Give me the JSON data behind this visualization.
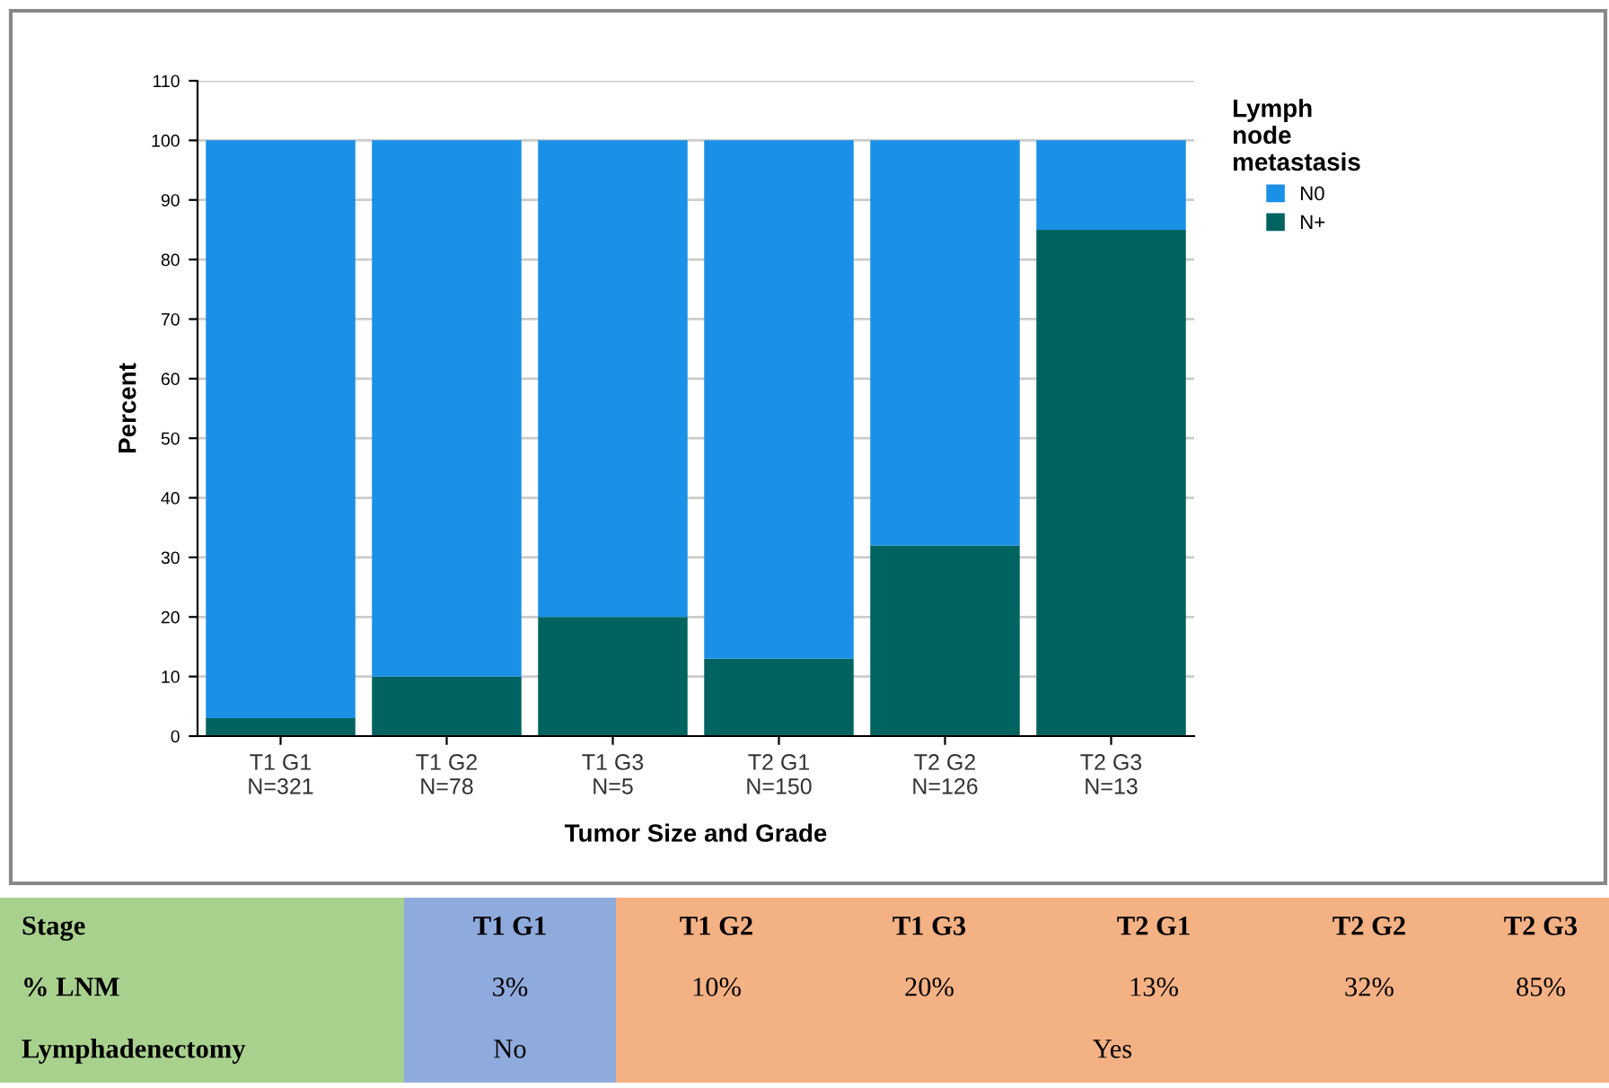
{
  "chart_data": {
    "type": "bar",
    "stacked": true,
    "xlabel": "Tumor Size and Grade",
    "ylabel": "Percent",
    "legend_title": "Lymph\nnode\nmetastasis",
    "legend": "top right",
    "categories": [
      "T1 G1\nN=321",
      "T1 G2\nN=78",
      "T1 G3\nN=5",
      "T2 G1\nN=150",
      "T2 G2\nN=126",
      "T2 G3\nN=13"
    ],
    "series": [
      {
        "name": "N+",
        "color": "#006360",
        "values": [
          3,
          10,
          20,
          13,
          32,
          85
        ]
      },
      {
        "name": "N0",
        "color": "#1a90e6",
        "values": [
          97,
          90,
          80,
          87,
          68,
          15
        ]
      }
    ],
    "ylim": [
      0,
      110
    ],
    "yticks": [
      0,
      10,
      20,
      30,
      40,
      50,
      60,
      70,
      80,
      90,
      100,
      110
    ],
    "grid": "y",
    "annotations": [
      "Stage",
      "T1 G1",
      "T1 G2",
      "T1 G3",
      "T2 G1",
      "T2 G2",
      "T2 G3",
      "% LNM",
      "Lymphadenectomy",
      "No",
      "Yes",
      "3%",
      "10%",
      "20%",
      "13%",
      "32%",
      "85%"
    ]
  }
}
